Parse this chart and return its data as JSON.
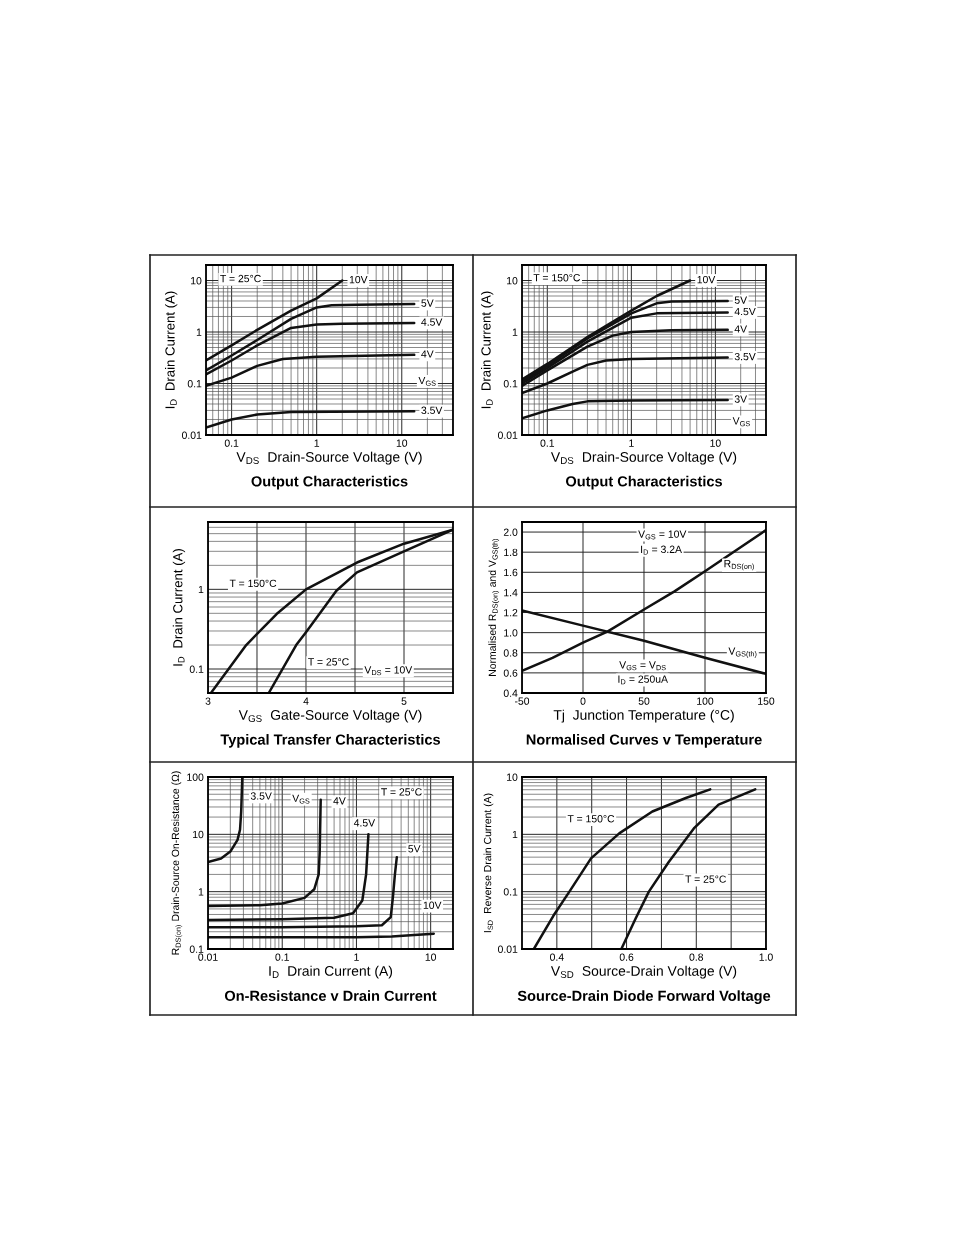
{
  "chart_data": [
    {
      "type": "line",
      "title": "Output Characteristics",
      "xlabel": "V$_{DS}$  Drain-Source Voltage (V)",
      "ylabel": "I$_{D}$  Drain Current (A)",
      "log": "xy",
      "grid": true,
      "xlim": [
        0.05,
        40
      ],
      "xticks": [
        0.1,
        1,
        10
      ],
      "ylim": [
        0.01,
        20
      ],
      "yticks": [
        0.01,
        0.1,
        1,
        10
      ],
      "series": [
        {
          "name": "10V",
          "color": "#111111",
          "x": [
            0.05,
            0.1,
            0.2,
            0.5,
            1,
            2
          ],
          "values": [
            0.28,
            0.55,
            1.1,
            2.6,
            4.5,
            10
          ]
        },
        {
          "name": "5V",
          "color": "#111111",
          "x": [
            0.05,
            0.1,
            0.2,
            0.5,
            1,
            1.5,
            3,
            14
          ],
          "values": [
            0.18,
            0.35,
            0.7,
            1.8,
            3.0,
            3.3,
            3.4,
            3.5
          ]
        },
        {
          "name": "4.5V",
          "color": "#111111",
          "x": [
            0.05,
            0.1,
            0.2,
            0.5,
            1,
            2,
            14
          ],
          "values": [
            0.15,
            0.28,
            0.55,
            1.2,
            1.4,
            1.45,
            1.5
          ]
        },
        {
          "name": "4V",
          "color": "#111111",
          "x": [
            0.05,
            0.1,
            0.2,
            0.4,
            1,
            14
          ],
          "values": [
            0.09,
            0.13,
            0.22,
            0.3,
            0.33,
            0.36
          ]
        },
        {
          "name": "3.5V",
          "color": "#111111",
          "x": [
            0.05,
            0.1,
            0.2,
            0.5,
            14
          ],
          "values": [
            0.014,
            0.02,
            0.025,
            0.028,
            0.029
          ]
        }
      ],
      "annotations": [
        "T = 25°C",
        {
          "text": "V$_{GS}$",
          "x": 20,
          "y": 0.11
        }
      ]
    },
    {
      "type": "line",
      "title": "Output Characteristics",
      "xlabel": "V$_{DS}$  Drain-Source Voltage (V)",
      "ylabel": "I$_{D}$  Drain Current (A)",
      "log": "xy",
      "grid": true,
      "xlim": [
        0.05,
        40
      ],
      "xticks": [
        0.1,
        1,
        10
      ],
      "ylim": [
        0.01,
        20
      ],
      "yticks": [
        0.01,
        0.1,
        1,
        10
      ],
      "series": [
        {
          "name": "10V",
          "color": "#111111",
          "x": [
            0.05,
            0.1,
            0.3,
            1,
            2,
            5
          ],
          "values": [
            0.12,
            0.24,
            0.8,
            2.6,
            5,
            10
          ]
        },
        {
          "name": "5V",
          "color": "#111111",
          "x": [
            0.05,
            0.1,
            0.3,
            1,
            2,
            3,
            14
          ],
          "values": [
            0.11,
            0.22,
            0.75,
            2.3,
            3.6,
            3.9,
            4.0
          ]
        },
        {
          "name": "4.5V",
          "color": "#111111",
          "x": [
            0.05,
            0.1,
            0.3,
            1,
            2,
            14
          ],
          "values": [
            0.1,
            0.2,
            0.65,
            1.9,
            2.3,
            2.4
          ]
        },
        {
          "name": "4V",
          "color": "#111111",
          "x": [
            0.05,
            0.1,
            0.3,
            0.6,
            1,
            3,
            14
          ],
          "values": [
            0.09,
            0.18,
            0.52,
            0.85,
            1.0,
            1.08,
            1.1
          ]
        },
        {
          "name": "3.5V",
          "color": "#111111",
          "x": [
            0.05,
            0.1,
            0.2,
            0.3,
            0.5,
            1,
            14
          ],
          "values": [
            0.065,
            0.1,
            0.17,
            0.23,
            0.28,
            0.3,
            0.32
          ]
        },
        {
          "name": "3V",
          "color": "#111111",
          "x": [
            0.05,
            0.1,
            0.2,
            0.3,
            1,
            14
          ],
          "values": [
            0.021,
            0.03,
            0.04,
            0.045,
            0.047,
            0.048
          ]
        }
      ],
      "annotations": [
        "T = 150°C",
        {
          "text": "V$_{GS}$",
          "x": 20.5,
          "y": 0.018
        }
      ]
    },
    {
      "type": "line",
      "title": "Typical Transfer Characteristics",
      "xlabel": "V$_{GS}$  Gate-Source Voltage (V)",
      "ylabel": "I$_{D}$  Drain Current (A)",
      "log": "y",
      "grid": true,
      "xlim": [
        3,
        5.5
      ],
      "xticks": [
        3,
        {
          "value": 3.5,
          "label": null
        },
        4,
        {
          "value": 4.5,
          "label": null
        },
        5
      ],
      "ylim": [
        0.05,
        7
      ],
      "yticks": [
        0.1,
        1
      ],
      "series": [
        {
          "color": "#111111",
          "x": [
            3.03,
            3.39,
            3.7,
            4.0,
            4.52,
            5.0,
            5.5
          ],
          "values": [
            0.05,
            0.2,
            0.49,
            1.0,
            2.17,
            3.74,
            5.6
          ]
        },
        {
          "color": "#111111",
          "x": [
            3.62,
            3.9,
            4.0,
            4.31,
            4.52,
            5.0,
            5.5
          ],
          "values": [
            0.05,
            0.2,
            0.29,
            0.96,
            1.63,
            3.0,
            5.6
          ]
        }
      ],
      "annotations": [
        "T = 150°C",
        "T = 25°C",
        "V$_{DS}$ = 10V"
      ]
    },
    {
      "type": "line",
      "title": "Normalised Curves v Temperature",
      "xlabel": "Tj  Junction Temperature (°C)",
      "ylabel": "Normalised R$_{DS(on)}$ and V$_{GS(th)}$",
      "grid": true,
      "xlim": [
        -50,
        150
      ],
      "xticks": [
        -50,
        0,
        50,
        100,
        150
      ],
      "ylim": [
        0.4,
        2.1
      ],
      "yticks": [
        {
          "value": 0.4,
          "label": "0.4"
        },
        {
          "value": 0.6,
          "label": "0.6"
        },
        {
          "value": 0.8,
          "label": "0.8"
        },
        {
          "value": 1.0,
          "label": "1.0"
        },
        {
          "value": 1.2,
          "label": "1.2"
        },
        {
          "value": 1.4,
          "label": "1.4"
        },
        {
          "value": 1.6,
          "label": "1.6"
        },
        {
          "value": 1.8,
          "label": "1.8"
        },
        {
          "value": 2.0,
          "label": "2.0"
        }
      ],
      "series": [
        {
          "color": "#111111",
          "x": [
            -50,
            -25,
            0,
            20,
            50,
            75,
            100,
            150
          ],
          "values": [
            0.62,
            0.75,
            0.9,
            1.01,
            1.23,
            1.41,
            1.61,
            2.02
          ]
        },
        {
          "color": "#111111",
          "x": [
            -50,
            0,
            50,
            100,
            150
          ],
          "values": [
            1.22,
            1.07,
            0.92,
            0.75,
            0.59
          ]
        }
      ],
      "annotations": [
        "V$_{GS}$ = 10V",
        "I$_{D}$ = 3.2A",
        {
          "text": "R$_{DS(on)}$",
          "x": 128,
          "y": 1.67
        },
        {
          "text": "V$_{GS(th)}$",
          "x": 131,
          "y": 0.8
        },
        "V$_{GS}$ = V$_{DS}$",
        "I$_{D}$ = 250uA"
      ]
    },
    {
      "type": "line",
      "title": "On-Resistance v Drain Current",
      "xlabel": "I$_{D}$  Drain Current (A)",
      "ylabel": "R$_{DS(on)}$ Drain-Source On-Resistance (Ω)",
      "log": "xy",
      "grid": true,
      "xlim": [
        0.01,
        20
      ],
      "xticks": [
        0.01,
        0.1,
        1,
        10
      ],
      "ylim": [
        0.1,
        100
      ],
      "yticks": [
        0.1,
        1,
        10,
        100
      ],
      "series": [
        {
          "color": "#111111",
          "x": [
            0.01,
            0.015,
            0.02,
            0.025,
            0.027,
            0.028,
            0.029
          ],
          "values": [
            3.3,
            3.8,
            5,
            8,
            12,
            25,
            100
          ]
        },
        {
          "color": "#111111",
          "x": [
            0.01,
            0.05,
            0.1,
            0.2,
            0.27,
            0.31,
            0.32,
            0.33
          ],
          "values": [
            0.56,
            0.58,
            0.62,
            0.78,
            1.1,
            2,
            5,
            40
          ]
        },
        {
          "color": "#111111",
          "x": [
            0.01,
            0.1,
            0.5,
            0.9,
            1.2,
            1.35,
            1.45
          ],
          "values": [
            0.32,
            0.33,
            0.35,
            0.42,
            0.7,
            2,
            10
          ]
        },
        {
          "color": "#111111",
          "x": [
            0.01,
            0.1,
            1,
            2.2,
            2.9,
            3.1,
            3.3,
            3.5
          ],
          "values": [
            0.24,
            0.24,
            0.25,
            0.26,
            0.36,
            0.8,
            2,
            4
          ]
        },
        {
          "color": "#111111",
          "x": [
            0.01,
            1,
            3,
            6,
            11
          ],
          "values": [
            0.16,
            0.16,
            0.165,
            0.175,
            0.185
          ]
        }
      ],
      "annotations": [
        {
          "text": "3.5V",
          "x": 0.052,
          "y": 45
        },
        {
          "text": "V$_{GS}$",
          "x": 0.18,
          "y": 41
        },
        {
          "text": "4V",
          "x": 0.59,
          "y": 37
        },
        {
          "text": "4.5V",
          "x": 1.28,
          "y": 15.3
        },
        {
          "text": "5V",
          "x": 6.0,
          "y": 5.4
        },
        {
          "text": "10V",
          "x": 10.5,
          "y": 0.56
        },
        "T = 25°C"
      ]
    },
    {
      "type": "line",
      "title": "Source-Drain Diode Forward Voltage",
      "xlabel": "V$_{SD}$  Source-Drain Voltage (V)",
      "ylabel": "I$_{SD}$  Reverse Drain Current (A)",
      "log": "y",
      "grid": true,
      "xlim": [
        0.3,
        1.0
      ],
      "xticks": [
        {
          "value": 0.4,
          "label": "0.4"
        },
        {
          "value": 0.5,
          "label": null
        },
        {
          "value": 0.6,
          "label": "0.6"
        },
        {
          "value": 0.7,
          "label": null
        },
        {
          "value": 0.8,
          "label": "0.8"
        },
        {
          "value": 0.9,
          "label": null
        },
        {
          "value": 1.0,
          "label": "1.0"
        }
      ],
      "ylim": [
        0.01,
        10
      ],
      "yticks": [
        0.01,
        0.1,
        1,
        10
      ],
      "series": [
        {
          "color": "#111111",
          "x": [
            0.334,
            0.39,
            0.436,
            0.498,
            0.579,
            0.674,
            0.77,
            0.84
          ],
          "values": [
            0.01,
            0.038,
            0.1,
            0.38,
            1.04,
            2.5,
            4.3,
            6.1
          ]
        },
        {
          "color": "#111111",
          "x": [
            0.585,
            0.626,
            0.664,
            0.721,
            0.793,
            0.864,
            0.969
          ],
          "values": [
            0.01,
            0.034,
            0.1,
            0.33,
            1.27,
            3.3,
            6.1
          ]
        }
      ],
      "annotations": [
        "T = 150°C",
        "T = 25°C"
      ]
    }
  ]
}
